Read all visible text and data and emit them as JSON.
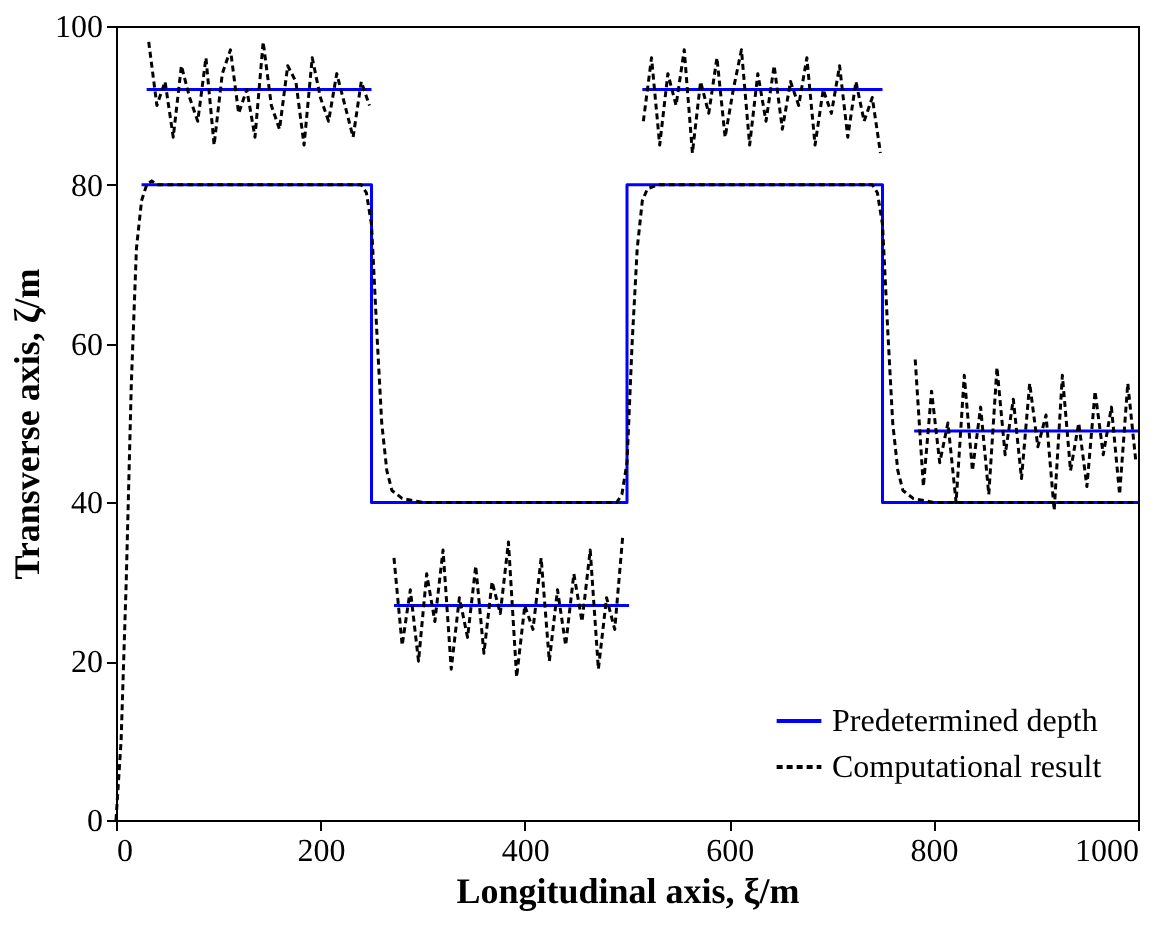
{
  "chart_data": {
    "type": "line",
    "xlabel": "Longitudinal axis, ξ/m",
    "ylabel": "Transverse axis, ζ/m",
    "xlim": [
      0,
      1000
    ],
    "xticks": [
      0,
      200,
      400,
      600,
      800,
      1000
    ],
    "ylim": [
      0,
      100
    ],
    "yticks": [
      0,
      20,
      40,
      60,
      80,
      100
    ],
    "grid": false,
    "legend": "bottom right",
    "series": [
      {
        "name": "Predetermined depth",
        "color": "#0000ff",
        "line_style": "solid",
        "x": [
          25,
          250,
          250,
          500,
          500,
          750,
          750,
          1000
        ],
        "values": [
          80,
          80,
          40,
          40,
          80,
          80,
          40,
          40
        ]
      },
      {
        "name": "Computational result",
        "color": "#000000",
        "line_style": "dashed",
        "x": [
          0,
          5,
          10,
          15,
          20,
          25,
          30,
          35,
          40,
          50,
          100,
          150,
          200,
          240,
          245,
          250,
          255,
          260,
          265,
          270,
          280,
          300,
          400,
          490,
          495,
          500,
          505,
          510,
          515,
          520,
          530,
          600,
          700,
          740,
          745,
          750,
          755,
          760,
          765,
          770,
          780,
          800,
          900,
          1000
        ],
        "values": [
          0,
          10,
          30,
          55,
          72,
          78,
          80,
          80.5,
          80,
          80,
          80,
          80,
          80,
          80,
          79,
          75,
          62,
          50,
          44,
          41.5,
          40.5,
          40,
          40,
          40,
          41,
          45,
          60,
          72,
          78,
          79.5,
          80,
          80,
          80,
          80,
          79,
          75,
          62,
          50,
          44,
          41.5,
          40.5,
          40,
          40,
          40
        ]
      },
      {
        "color": "#0000ff",
        "line_style": "solid",
        "x": [
          30,
          250
        ],
        "values": [
          92,
          92
        ]
      },
      {
        "color": "#000000",
        "line_style": "dashed",
        "x": [
          32,
          40,
          48,
          56,
          64,
          72,
          80,
          88,
          96,
          104,
          112,
          120,
          128,
          136,
          144,
          152,
          160,
          168,
          176,
          184,
          192,
          200,
          208,
          216,
          224,
          232,
          240,
          248
        ],
        "values": [
          98,
          90,
          93,
          86,
          95,
          91,
          88,
          96,
          85,
          94,
          97,
          89,
          92,
          86,
          98,
          90,
          87,
          95,
          93,
          85,
          96,
          91,
          88,
          94,
          90,
          86,
          93,
          90
        ]
      },
      {
        "color": "#0000ff",
        "line_style": "solid",
        "x": [
          272,
          502
        ],
        "values": [
          27,
          27
        ]
      },
      {
        "color": "#000000",
        "line_style": "dashed",
        "x": [
          272,
          280,
          288,
          296,
          304,
          312,
          320,
          328,
          336,
          344,
          352,
          360,
          368,
          376,
          384,
          392,
          400,
          408,
          416,
          424,
          432,
          440,
          448,
          456,
          464,
          472,
          480,
          488,
          496
        ],
        "values": [
          33,
          22,
          29,
          20,
          31,
          25,
          34,
          19,
          28,
          23,
          32,
          21,
          30,
          26,
          35,
          18,
          27,
          24,
          33,
          20,
          29,
          22,
          31,
          25,
          34,
          19,
          28,
          24,
          36
        ]
      },
      {
        "color": "#0000ff",
        "line_style": "solid",
        "x": [
          515,
          750
        ],
        "values": [
          92,
          92
        ]
      },
      {
        "color": "#000000",
        "line_style": "dashed",
        "x": [
          516,
          524,
          532,
          540,
          548,
          556,
          564,
          572,
          580,
          588,
          596,
          604,
          612,
          620,
          628,
          636,
          644,
          652,
          660,
          668,
          676,
          684,
          692,
          700,
          708,
          716,
          724,
          732,
          740,
          748
        ],
        "values": [
          88,
          96,
          85,
          94,
          90,
          97,
          84,
          93,
          89,
          96,
          86,
          92,
          97,
          85,
          94,
          88,
          95,
          87,
          93,
          90,
          96,
          85,
          92,
          89,
          95,
          86,
          93,
          88,
          91,
          84
        ]
      },
      {
        "color": "#0000ff",
        "line_style": "solid",
        "x": [
          781,
          1000
        ],
        "values": [
          49,
          49
        ]
      },
      {
        "color": "#000000",
        "line_style": "dashed",
        "x": [
          782,
          790,
          798,
          806,
          814,
          822,
          830,
          838,
          846,
          854,
          862,
          870,
          878,
          886,
          894,
          902,
          910,
          918,
          926,
          934,
          942,
          950,
          958,
          966,
          974,
          982,
          990,
          998
        ],
        "values": [
          58,
          42,
          54,
          45,
          50,
          40,
          56,
          44,
          52,
          41,
          57,
          46,
          53,
          43,
          55,
          47,
          51,
          39,
          56,
          44,
          50,
          42,
          54,
          46,
          52,
          41,
          55,
          45
        ]
      }
    ]
  }
}
